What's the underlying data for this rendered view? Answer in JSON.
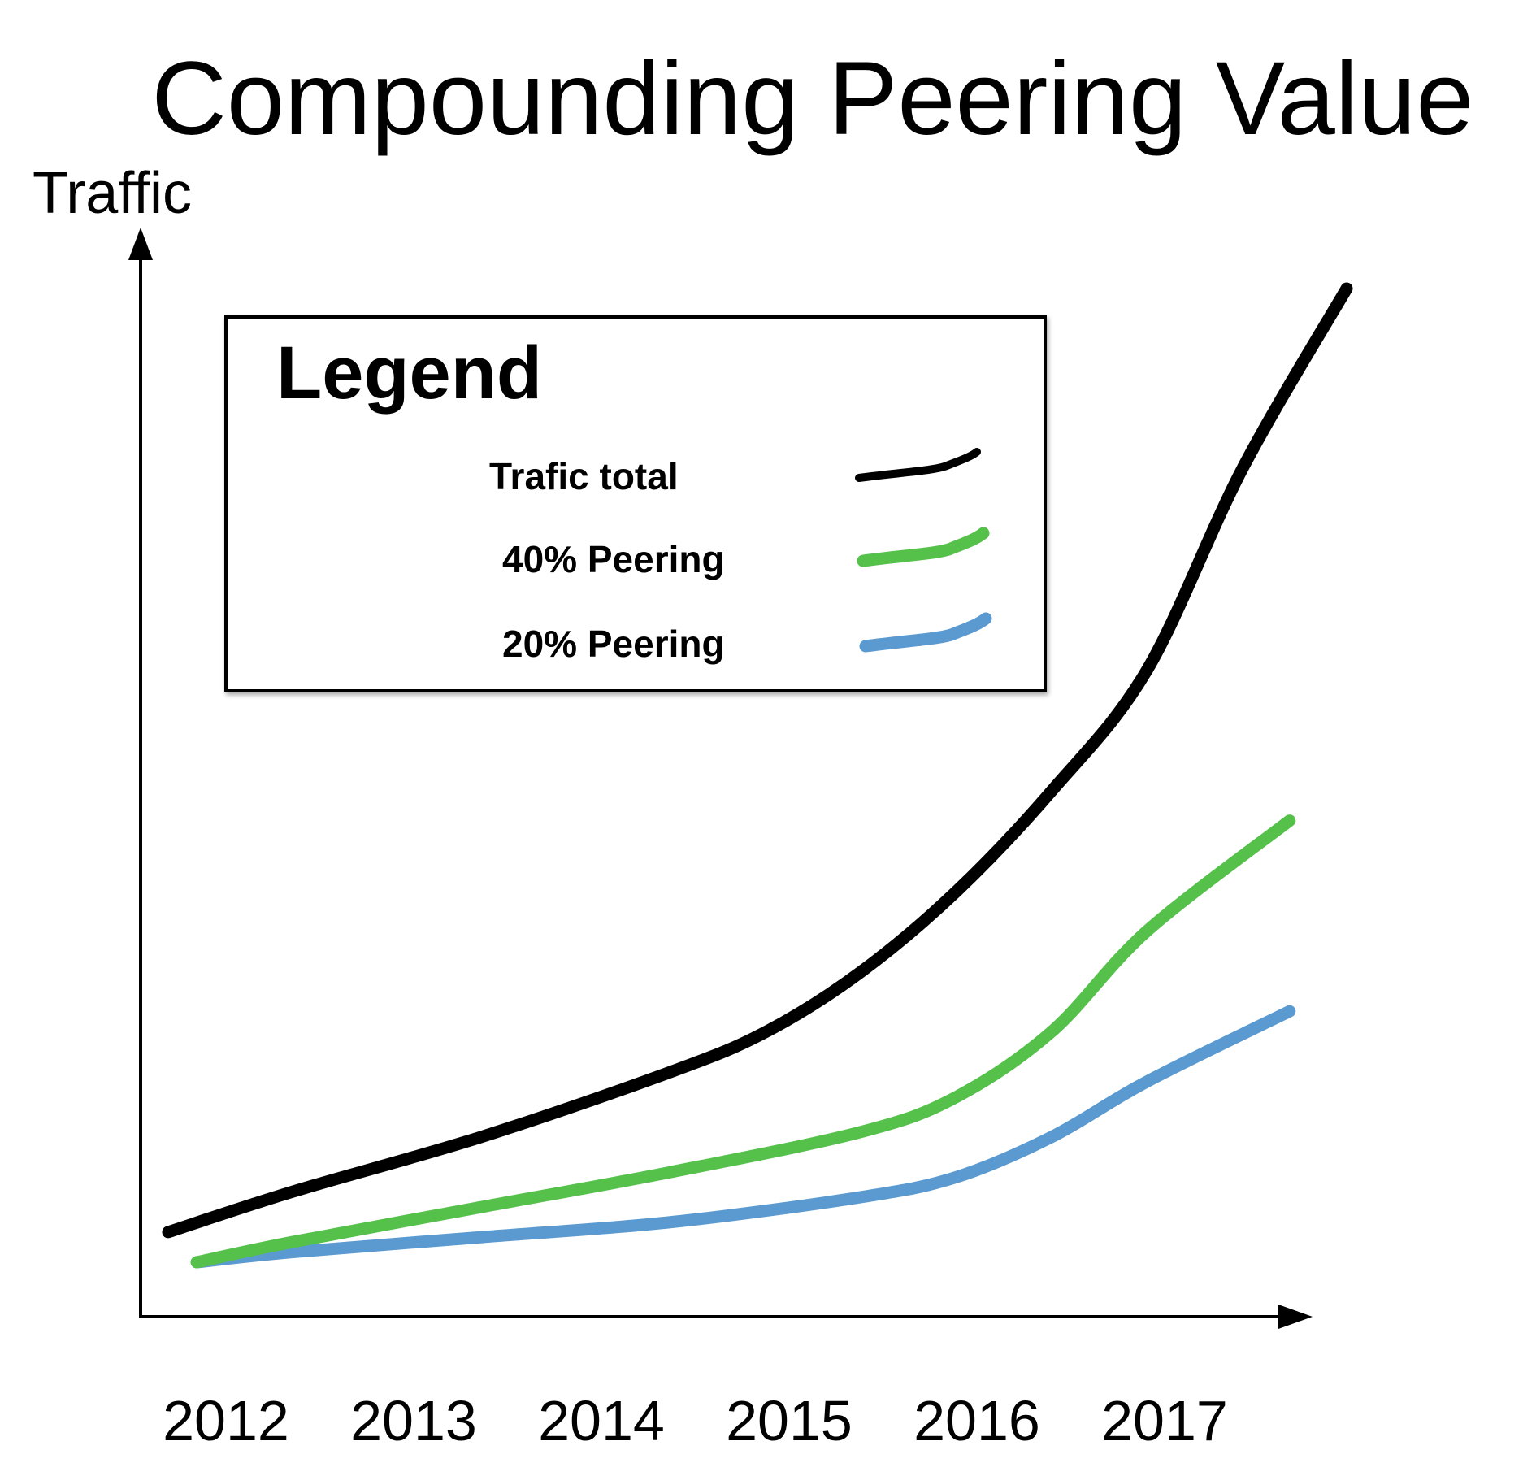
{
  "chart_data": {
    "type": "line",
    "title": "Compounding Peering Value",
    "ylabel": "Traffic",
    "xlabel": "",
    "categories": [
      "2012",
      "2013",
      "2014",
      "2015",
      "2016",
      "2017"
    ],
    "x_range": [
      2011.85,
      2018.05
    ],
    "ylim": [
      0,
      100
    ],
    "grid": false,
    "legend": {
      "title": "Legend",
      "position": "top-left",
      "entries": [
        {
          "label": "Trafic total",
          "color": "#000000"
        },
        {
          "label": "40% Peering",
          "color": "#55c14b"
        },
        {
          "label": "20% Peering",
          "color": "#5a9ad0"
        }
      ]
    },
    "series": [
      {
        "label": "Trafic total",
        "color": "#000000",
        "points": [
          [
            2011.85,
            6
          ],
          [
            2012.5,
            10
          ],
          [
            2013.5,
            15.5
          ],
          [
            2014.5,
            22
          ],
          [
            2015.0,
            26
          ],
          [
            2015.5,
            32
          ],
          [
            2016.0,
            40
          ],
          [
            2016.5,
            50
          ],
          [
            2017.0,
            62
          ],
          [
            2017.5,
            82
          ],
          [
            2018.05,
            100
          ]
        ]
      },
      {
        "label": "40% Peering",
        "color": "#55c14b",
        "points": [
          [
            2012.0,
            3
          ],
          [
            2012.5,
            5
          ],
          [
            2013.5,
            8.5
          ],
          [
            2014.5,
            12
          ],
          [
            2015.5,
            16
          ],
          [
            2016.0,
            19.5
          ],
          [
            2016.5,
            26
          ],
          [
            2017.0,
            36
          ],
          [
            2017.75,
            47
          ]
        ]
      },
      {
        "label": "20% Peering",
        "color": "#5a9ad0",
        "points": [
          [
            2012.0,
            3
          ],
          [
            2012.5,
            4
          ],
          [
            2013.5,
            5.5
          ],
          [
            2014.5,
            7
          ],
          [
            2015.5,
            9.5
          ],
          [
            2016.0,
            11.5
          ],
          [
            2016.5,
            15.5
          ],
          [
            2017.0,
            21
          ],
          [
            2017.75,
            28
          ]
        ]
      }
    ]
  }
}
